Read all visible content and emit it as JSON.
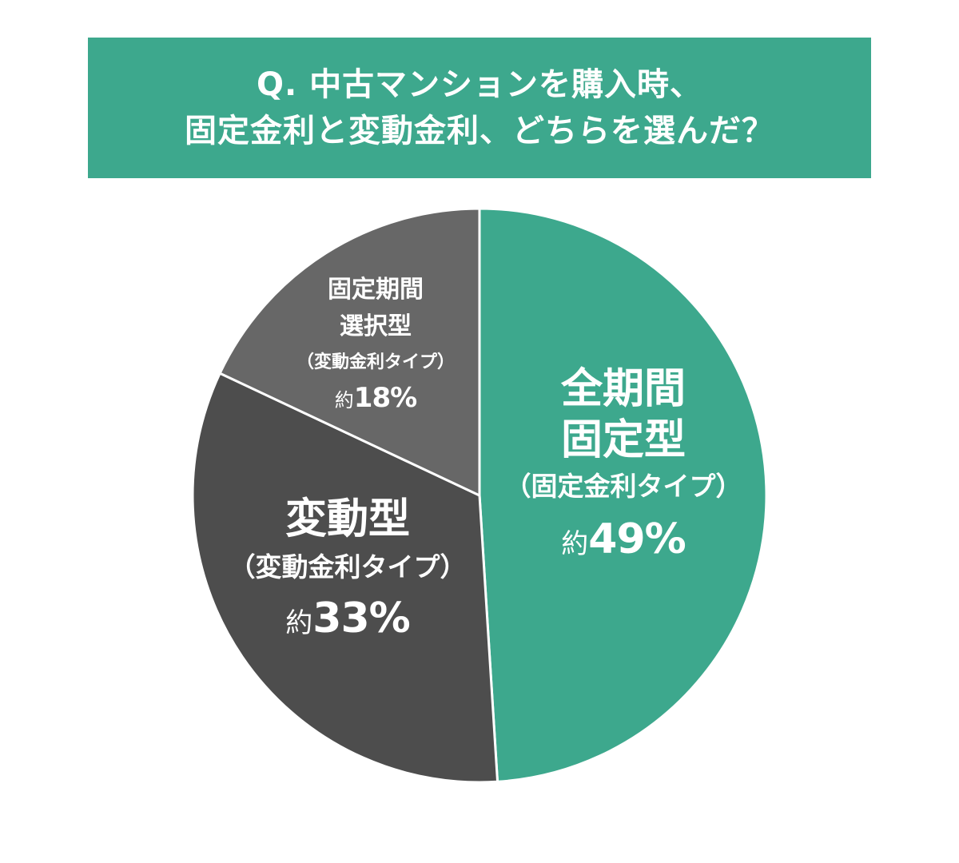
{
  "header": {
    "line1": "Q. 中古マンションを購入時、",
    "line2": "固定金利と変動金利、どちらを選んだ？"
  },
  "colors": {
    "fixed_all": "#3da88d",
    "variable": "#4d4d4d",
    "fixed_period": "#676767",
    "text": "#ffffff"
  },
  "chart_data": {
    "type": "pie",
    "title": "Q. 中古マンションを購入時、固定金利と変動金利、どちらを選んだ？",
    "slices": [
      {
        "title_lines": [
          "全期間",
          "固定型"
        ],
        "sublabel": "（固定金利タイプ）",
        "prefix": "約",
        "percent_text": "49%",
        "value": 49,
        "color": "#3da88d"
      },
      {
        "title_lines": [
          "変動型"
        ],
        "sublabel": "（変動金利タイプ）",
        "prefix": "約",
        "percent_text": "33%",
        "value": 33,
        "color": "#4d4d4d"
      },
      {
        "title_lines": [
          "固定期間",
          "選択型"
        ],
        "sublabel": "（変動金利タイプ）",
        "prefix": "約",
        "percent_text": "18%",
        "value": 18,
        "color": "#676767"
      }
    ]
  }
}
